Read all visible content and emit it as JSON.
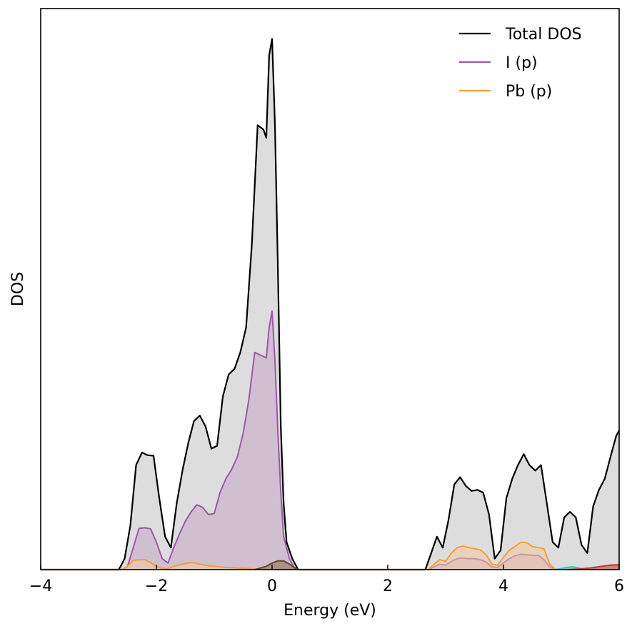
{
  "chart_data": {
    "type": "area",
    "xlabel": "Energy (eV)",
    "ylabel": "DOS",
    "xlim": [
      -4,
      6
    ],
    "ylim": [
      0,
      1.02
    ],
    "x_ticks": [
      {
        "value": -4,
        "label": "−4"
      },
      {
        "value": -2,
        "label": "−2"
      },
      {
        "value": 0,
        "label": "0"
      },
      {
        "value": 2,
        "label": "2"
      },
      {
        "value": 4,
        "label": "4"
      },
      {
        "value": 6,
        "label": "6"
      }
    ],
    "y_ticks_shown": false,
    "grid": false,
    "legend_position": "top-right",
    "legend": [
      "Total DOS",
      "I (p)",
      "Pb (p)"
    ],
    "series": [
      {
        "name": "Total DOS",
        "color": "#000000",
        "fill": "#d9d9d9",
        "points": [
          [
            -4.0,
            0
          ],
          [
            -2.65,
            0
          ],
          [
            -2.55,
            0.02
          ],
          [
            -2.45,
            0.08
          ],
          [
            -2.35,
            0.19
          ],
          [
            -2.25,
            0.213
          ],
          [
            -2.15,
            0.208
          ],
          [
            -2.05,
            0.207
          ],
          [
            -1.95,
            0.13
          ],
          [
            -1.85,
            0.06
          ],
          [
            -1.75,
            0.04
          ],
          [
            -1.65,
            0.12
          ],
          [
            -1.55,
            0.18
          ],
          [
            -1.45,
            0.23
          ],
          [
            -1.35,
            0.27
          ],
          [
            -1.25,
            0.28
          ],
          [
            -1.15,
            0.26
          ],
          [
            -1.05,
            0.22
          ],
          [
            -0.95,
            0.225
          ],
          [
            -0.85,
            0.315
          ],
          [
            -0.75,
            0.355
          ],
          [
            -0.65,
            0.365
          ],
          [
            -0.55,
            0.395
          ],
          [
            -0.45,
            0.44
          ],
          [
            -0.35,
            0.59
          ],
          [
            -0.25,
            0.808
          ],
          [
            -0.15,
            0.8
          ],
          [
            -0.1,
            0.785
          ],
          [
            -0.05,
            0.935
          ],
          [
            0.0,
            0.965
          ],
          [
            0.05,
            0.81
          ],
          [
            0.1,
            0.55
          ],
          [
            0.15,
            0.26
          ],
          [
            0.2,
            0.12
          ],
          [
            0.25,
            0.05
          ],
          [
            0.35,
            0.02
          ],
          [
            0.45,
            0.0
          ],
          [
            2.65,
            0
          ],
          [
            2.75,
            0.03
          ],
          [
            2.85,
            0.06
          ],
          [
            2.95,
            0.04
          ],
          [
            3.05,
            0.09
          ],
          [
            3.15,
            0.155
          ],
          [
            3.25,
            0.168
          ],
          [
            3.35,
            0.152
          ],
          [
            3.45,
            0.143
          ],
          [
            3.55,
            0.145
          ],
          [
            3.65,
            0.14
          ],
          [
            3.75,
            0.1
          ],
          [
            3.85,
            0.02
          ],
          [
            3.95,
            0.035
          ],
          [
            4.05,
            0.13
          ],
          [
            4.15,
            0.165
          ],
          [
            4.25,
            0.19
          ],
          [
            4.35,
            0.21
          ],
          [
            4.45,
            0.19
          ],
          [
            4.55,
            0.18
          ],
          [
            4.65,
            0.19
          ],
          [
            4.75,
            0.12
          ],
          [
            4.85,
            0.05
          ],
          [
            4.95,
            0.04
          ],
          [
            5.05,
            0.095
          ],
          [
            5.15,
            0.105
          ],
          [
            5.25,
            0.095
          ],
          [
            5.35,
            0.045
          ],
          [
            5.45,
            0.03
          ],
          [
            5.55,
            0.115
          ],
          [
            5.65,
            0.145
          ],
          [
            5.75,
            0.165
          ],
          [
            5.85,
            0.205
          ],
          [
            5.95,
            0.243
          ],
          [
            6.0,
            0.253
          ]
        ]
      },
      {
        "name": "I (p)",
        "color": "#9b59a6",
        "fill": "#c5a6c4",
        "points": [
          [
            -4.0,
            0
          ],
          [
            -2.6,
            0
          ],
          [
            -2.5,
            0.005
          ],
          [
            -2.4,
            0.04
          ],
          [
            -2.3,
            0.075
          ],
          [
            -2.2,
            0.076
          ],
          [
            -2.1,
            0.074
          ],
          [
            -2.0,
            0.05
          ],
          [
            -1.9,
            0.02
          ],
          [
            -1.8,
            0.012
          ],
          [
            -1.7,
            0.04
          ],
          [
            -1.6,
            0.065
          ],
          [
            -1.5,
            0.088
          ],
          [
            -1.4,
            0.105
          ],
          [
            -1.3,
            0.118
          ],
          [
            -1.2,
            0.113
          ],
          [
            -1.1,
            0.1
          ],
          [
            -1.0,
            0.102
          ],
          [
            -0.9,
            0.14
          ],
          [
            -0.8,
            0.165
          ],
          [
            -0.7,
            0.182
          ],
          [
            -0.6,
            0.205
          ],
          [
            -0.5,
            0.248
          ],
          [
            -0.4,
            0.31
          ],
          [
            -0.3,
            0.395
          ],
          [
            -0.2,
            0.39
          ],
          [
            -0.1,
            0.385
          ],
          [
            -0.05,
            0.44
          ],
          [
            0.0,
            0.47
          ],
          [
            0.05,
            0.38
          ],
          [
            0.1,
            0.25
          ],
          [
            0.15,
            0.14
          ],
          [
            0.2,
            0.06
          ],
          [
            0.3,
            0.02
          ],
          [
            0.4,
            0.0
          ],
          [
            2.7,
            0
          ],
          [
            2.8,
            0.005
          ],
          [
            2.9,
            0.01
          ],
          [
            3.0,
            0.008
          ],
          [
            3.1,
            0.015
          ],
          [
            3.2,
            0.02
          ],
          [
            3.3,
            0.021
          ],
          [
            3.4,
            0.02
          ],
          [
            3.5,
            0.02
          ],
          [
            3.6,
            0.018
          ],
          [
            3.7,
            0.014
          ],
          [
            3.8,
            0.005
          ],
          [
            3.9,
            0.004
          ],
          [
            4.0,
            0.012
          ],
          [
            4.1,
            0.02
          ],
          [
            4.2,
            0.025
          ],
          [
            4.3,
            0.028
          ],
          [
            4.4,
            0.027
          ],
          [
            4.5,
            0.026
          ],
          [
            4.6,
            0.026
          ],
          [
            4.7,
            0.018
          ],
          [
            4.8,
            0.005
          ],
          [
            4.9,
            0.0
          ],
          [
            6.0,
            0.0
          ]
        ]
      },
      {
        "name": "Pb (p)",
        "color": "#f5a033",
        "fill": "#f3c9a0",
        "points": [
          [
            -4.0,
            0
          ],
          [
            -2.6,
            0
          ],
          [
            -2.5,
            0.006
          ],
          [
            -2.4,
            0.017
          ],
          [
            -2.3,
            0.018
          ],
          [
            -2.2,
            0.018
          ],
          [
            -2.1,
            0.013
          ],
          [
            -2.0,
            0.006
          ],
          [
            -1.9,
            0.002
          ],
          [
            -1.8,
            0.002
          ],
          [
            -1.7,
            0.006
          ],
          [
            -1.6,
            0.009
          ],
          [
            -1.5,
            0.011
          ],
          [
            -1.4,
            0.013
          ],
          [
            -1.3,
            0.011
          ],
          [
            -1.2,
            0.009
          ],
          [
            -1.1,
            0.007
          ],
          [
            -1.0,
            0.006
          ],
          [
            -0.9,
            0.005
          ],
          [
            -0.8,
            0.004
          ],
          [
            -0.6,
            0.003
          ],
          [
            -0.4,
            0.002
          ],
          [
            0.0,
            0.0
          ],
          [
            2.7,
            0
          ],
          [
            2.8,
            0.01
          ],
          [
            2.9,
            0.018
          ],
          [
            3.0,
            0.015
          ],
          [
            3.1,
            0.03
          ],
          [
            3.2,
            0.04
          ],
          [
            3.3,
            0.043
          ],
          [
            3.4,
            0.04
          ],
          [
            3.5,
            0.038
          ],
          [
            3.6,
            0.036
          ],
          [
            3.7,
            0.027
          ],
          [
            3.8,
            0.01
          ],
          [
            3.9,
            0.008
          ],
          [
            4.0,
            0.022
          ],
          [
            4.1,
            0.035
          ],
          [
            4.2,
            0.042
          ],
          [
            4.3,
            0.05
          ],
          [
            4.4,
            0.049
          ],
          [
            4.5,
            0.042
          ],
          [
            4.6,
            0.04
          ],
          [
            4.7,
            0.038
          ],
          [
            4.8,
            0.01
          ],
          [
            4.9,
            0.0
          ],
          [
            6.0,
            0.0
          ]
        ]
      },
      {
        "name": "",
        "color": "#6b4423",
        "fill": "#8b6b4a",
        "points": [
          [
            -0.3,
            0
          ],
          [
            -0.2,
            0.003
          ],
          [
            -0.1,
            0.006
          ],
          [
            0.0,
            0.012
          ],
          [
            0.1,
            0.016
          ],
          [
            0.2,
            0.016
          ],
          [
            0.3,
            0.01
          ],
          [
            0.4,
            0.003
          ],
          [
            0.45,
            0.0
          ]
        ]
      },
      {
        "name": "",
        "color": "#2ec4c4",
        "fill": "#2ec4c4",
        "points": [
          [
            4.9,
            0
          ],
          [
            5.0,
            0.002
          ],
          [
            5.1,
            0.004
          ],
          [
            5.2,
            0.005
          ],
          [
            5.3,
            0.003
          ],
          [
            5.4,
            0.0
          ]
        ]
      },
      {
        "name": "",
        "color": "#c0392b",
        "fill": "#c0392b",
        "points": [
          [
            5.1,
            0
          ],
          [
            5.3,
            0.001
          ],
          [
            5.5,
            0.003
          ],
          [
            5.7,
            0.006
          ],
          [
            5.85,
            0.008
          ],
          [
            6.0,
            0.009
          ]
        ]
      }
    ]
  }
}
